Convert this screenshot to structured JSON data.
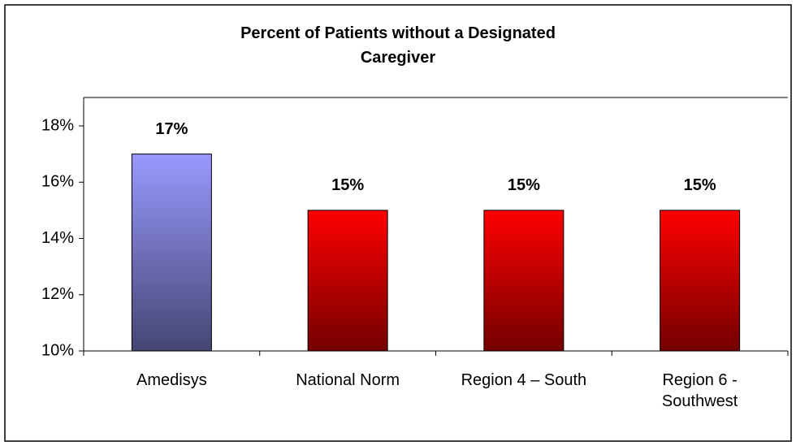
{
  "chart_data": {
    "type": "bar",
    "title": "Percent of Patients without a Designated Caregiver",
    "categories": [
      "Amedisys",
      "National Norm",
      "Region 4 – South",
      "Region 6 - Southwest"
    ],
    "values": [
      17,
      15,
      15,
      15
    ],
    "value_labels": [
      "17%",
      "15%",
      "15%",
      "15%"
    ],
    "colors": [
      "#9999ff",
      "#ff0000",
      "#ff0000",
      "#ff0000"
    ],
    "ylim": [
      10,
      18
    ],
    "yticks": [
      {
        "value": 10,
        "label": "10%"
      },
      {
        "value": 12,
        "label": "12%"
      },
      {
        "value": 14,
        "label": "14%"
      },
      {
        "value": 16,
        "label": "16%"
      },
      {
        "value": 18,
        "label": "18%"
      }
    ],
    "grid": false
  }
}
